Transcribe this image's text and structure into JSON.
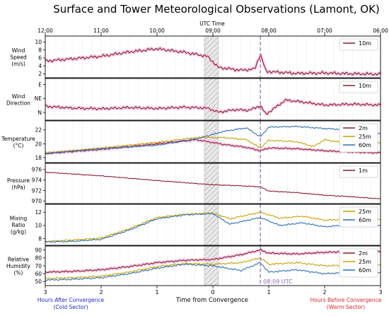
{
  "chart_data": {
    "type": "line",
    "title": "Surface and Tower Meteorological Observations (Lamont, OK)",
    "top_axis": {
      "label": "UTC Time",
      "ticks": [
        "12:00",
        "11:00",
        "10:00",
        "09:00",
        "08:00",
        "07:00",
        "06:00"
      ]
    },
    "bottom_axis": {
      "label": "Time from Convergence",
      "ticks": [
        "3",
        "2",
        "1",
        "0",
        "1",
        "2",
        "3"
      ],
      "left_note": [
        "Hours After Convergence",
        "(Cold Sector)"
      ],
      "right_note": [
        "Hours Before Convergence",
        "(Warm Sector)"
      ],
      "left_note_color": "#1f1fd6",
      "right_note_color": "#d62728"
    },
    "x_range_hours_from_convergence": [
      -3,
      3
    ],
    "convergence_band": [
      -0.15,
      0.1
    ],
    "event_marker": {
      "label": "08:09 UTC",
      "x": 0.85,
      "color": "#9467bd"
    },
    "colors": {
      "2m": "#8c1a2e",
      "10m": "#8c1a2e",
      "1m": "#8c1a2e",
      "25m": "#c8a000",
      "60m": "#2e6fb5",
      "shade": "#f4c8e6"
    },
    "panels": [
      {
        "ylabel": [
          "Wind",
          "Speed",
          "(m/s)"
        ],
        "yticks": [
          "2",
          "4",
          "6",
          "8",
          "10"
        ],
        "ylim": [
          1,
          11.5
        ],
        "legend": [
          "10m"
        ],
        "series": [
          {
            "name": "10m",
            "x": [
              -3,
              -2.5,
              -2,
              -1.5,
              -1,
              -0.5,
              -0.1,
              0.1,
              0.5,
              0.75,
              0.85,
              0.95,
              1.5,
              2,
              2.5,
              3
            ],
            "y": [
              5.2,
              5.8,
              6.4,
              7.5,
              8.3,
              7.4,
              6.4,
              3.6,
              2.9,
              3.2,
              7.0,
              2.6,
              2.1,
              2.2,
              2.0,
              1.9
            ]
          }
        ]
      },
      {
        "ylabel": [
          "Wind",
          "Direction"
        ],
        "yticks": [
          "N",
          "NE",
          "E"
        ],
        "ytick_values": [
          0,
          45,
          90
        ],
        "ylim": [
          -25,
          110
        ],
        "legend": [
          "10m"
        ],
        "series": [
          {
            "name": "10m",
            "x": [
              -3,
              -2.5,
              -2,
              -1.5,
              -1,
              -0.5,
              -0.1,
              0.1,
              0.4,
              0.65,
              0.85,
              0.95,
              1.3,
              1.6,
              2,
              2.5,
              3
            ],
            "y": [
              20,
              14,
              12,
              16,
              13,
              17,
              14,
              1,
              9,
              7,
              22,
              -6,
              40,
              34,
              24,
              27,
              24
            ]
          }
        ]
      },
      {
        "ylabel": [
          "Temperature",
          "(°C)"
        ],
        "yticks": [
          "18",
          "20",
          "22"
        ],
        "ylim": [
          17.3,
          23.3
        ],
        "legend": [
          "2m",
          "25m",
          "60m"
        ],
        "series": [
          {
            "name": "2m",
            "x": [
              -3,
              -2,
              -1,
              -0.3,
              0.2,
              0.6,
              0.85,
              1,
              1.5,
              2,
              2.5,
              3
            ],
            "y": [
              18.6,
              19.2,
              20.0,
              20.6,
              19.9,
              19.5,
              19.0,
              19.4,
              19.3,
              19.0,
              18.8,
              18.7
            ]
          },
          {
            "name": "25m",
            "x": [
              -3,
              -2,
              -1,
              -0.3,
              0.2,
              0.6,
              0.85,
              1,
              1.5,
              1.8,
              2,
              2.5,
              3
            ],
            "y": [
              18.7,
              19.4,
              20.2,
              20.9,
              20.9,
              20.6,
              19.4,
              20.5,
              20.3,
              19.6,
              20.6,
              19.9,
              20.2
            ]
          },
          {
            "name": "60m",
            "x": [
              -3,
              -2,
              -1,
              -0.3,
              0.2,
              0.6,
              0.85,
              1,
              1.5,
              2,
              2.5,
              3
            ],
            "y": [
              18.6,
              19.3,
              19.8,
              20.7,
              21.8,
              22.3,
              21.0,
              22.4,
              22.5,
              22.2,
              22.0,
              21.5
            ]
          }
        ]
      },
      {
        "ylabel": [
          "Pressure",
          "(hPa)"
        ],
        "yticks": [
          "970",
          "972",
          "974",
          "976"
        ],
        "ylim": [
          969.5,
          977.2
        ],
        "legend": [
          "1m"
        ],
        "series": [
          {
            "name": "1m",
            "x": [
              -3,
              -2,
              -1,
              0,
              0.5,
              0.85,
              1,
              1.5,
              2,
              2.5,
              3
            ],
            "y": [
              975.5,
              974.8,
              973.9,
              973.1,
              972.9,
              972.7,
              971.9,
              971.6,
              971.1,
              970.8,
              970.4
            ]
          }
        ]
      },
      {
        "ylabel": [
          "Mixing",
          "Ratio",
          "(g/kg)"
        ],
        "yticks": [
          "8",
          "10",
          "12"
        ],
        "ylim": [
          7,
          13.2
        ],
        "legend": [
          "25m",
          "60m"
        ],
        "series": [
          {
            "name": "25m",
            "x": [
              -3,
              -2.5,
              -2,
              -1.5,
              -1,
              -0.5,
              0,
              0.3,
              0.85,
              1.2,
              1.6,
              2,
              2.3
            ],
            "y": [
              7.6,
              7.8,
              8.1,
              9.5,
              11.2,
              11.7,
              11.9,
              11.0,
              12.0,
              11.1,
              11.4,
              10.8,
              10.9
            ]
          },
          {
            "name": "60m",
            "x": [
              -3,
              -2.5,
              -2,
              -1.5,
              -1,
              -0.5,
              0,
              0.3,
              0.85,
              1.2,
              1.6,
              2,
              2.3
            ],
            "y": [
              7.5,
              7.6,
              7.9,
              9.3,
              11.0,
              11.6,
              11.8,
              10.2,
              11.2,
              10.0,
              10.4,
              9.8,
              10.0
            ]
          }
        ]
      },
      {
        "ylabel": [
          "Relative",
          "Humidity",
          "(%)"
        ],
        "yticks": [
          "50",
          "60",
          "70",
          "80",
          "90"
        ],
        "ylim": [
          45,
          95
        ],
        "legend": [
          "2m",
          "25m",
          "60m"
        ],
        "series": [
          {
            "name": "2m",
            "x": [
              -3,
              -2.5,
              -2,
              -1.5,
              -1,
              -0.5,
              0,
              0.5,
              0.85,
              1,
              1.5,
              2,
              2.5,
              3
            ],
            "y": [
              62,
              63,
              65,
              69,
              74,
              77,
              78,
              84,
              90,
              86,
              85,
              87,
              88,
              88
            ]
          },
          {
            "name": "25m",
            "x": [
              -3,
              -2.5,
              -2,
              -1.5,
              -1,
              -0.5,
              0,
              0.5,
              0.85,
              1,
              1.5,
              2,
              2.5,
              3
            ],
            "y": [
              54,
              55,
              57,
              62,
              69,
              73,
              72,
              74,
              80,
              72,
              74,
              70,
              71,
              71
            ]
          },
          {
            "name": "60m",
            "x": [
              -3,
              -2.5,
              -2,
              -1.5,
              -1,
              -0.5,
              0,
              0.5,
              0.85,
              1,
              1.5,
              2,
              2.5,
              3
            ],
            "y": [
              52,
              53,
              55,
              60,
              67,
              72,
              70,
              64,
              74,
              62,
              65,
              60,
              62,
              62
            ]
          }
        ]
      }
    ]
  }
}
